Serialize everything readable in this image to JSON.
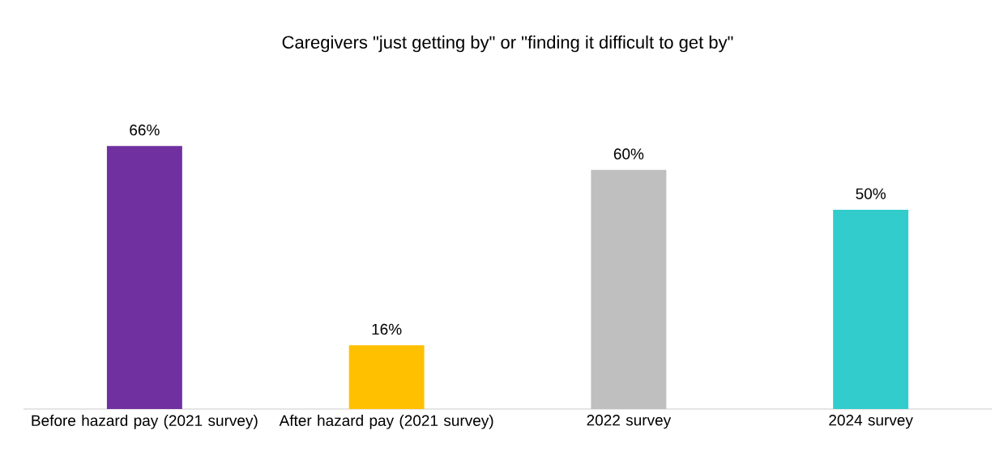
{
  "chart_data": {
    "type": "bar",
    "title": "Caregivers \"just getting by\" or \"finding it difficult to get by\"",
    "categories": [
      "Before hazard pay (2021 survey)",
      "After hazard pay (2021 survey)",
      "2022 survey",
      "2024 survey"
    ],
    "values": [
      66,
      16,
      60,
      50
    ],
    "colors": [
      "#7030a0",
      "#ffc000",
      "#bfbfbf",
      "#33cccc"
    ],
    "value_labels": [
      "66%",
      "16%",
      "60%",
      "50%"
    ]
  }
}
